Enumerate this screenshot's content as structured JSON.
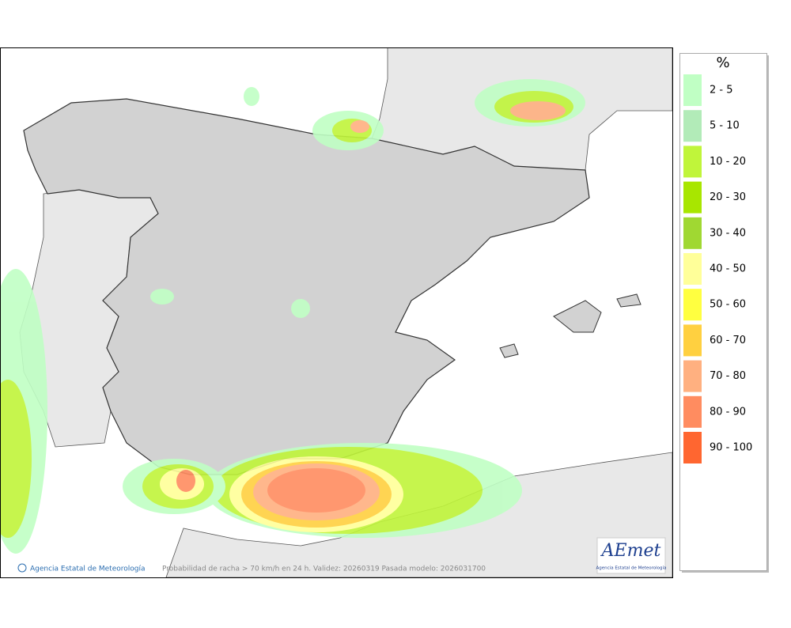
{
  "legend": {
    "title": "%",
    "items": [
      {
        "label": "2 - 5",
        "color": "#c0ffc4"
      },
      {
        "label": "5 - 10",
        "color": "#b2ebb8"
      },
      {
        "label": "10 - 20",
        "color": "#c0f53a"
      },
      {
        "label": "20 - 30",
        "color": "#a8e600"
      },
      {
        "label": "30 - 40",
        "color": "#a0d832"
      },
      {
        "label": "40 - 50",
        "color": "#ffff99"
      },
      {
        "label": "50 - 60",
        "color": "#ffff40"
      },
      {
        "label": "60 - 70",
        "color": "#ffd040"
      },
      {
        "label": "70 - 80",
        "color": "#ffb080"
      },
      {
        "label": "80 - 90",
        "color": "#ff8c60"
      },
      {
        "label": "90 - 100",
        "color": "#ff6630"
      }
    ]
  },
  "credit": "Agencia Estatal de Meteorología",
  "caption": "Probabilidad de racha > 70 km/h en 24 h. Validez: 20260319 Pasada modelo: 2026031700",
  "logo": {
    "name": "AEmet",
    "subtitle": "Agencia Estatal de Meteorología"
  }
}
